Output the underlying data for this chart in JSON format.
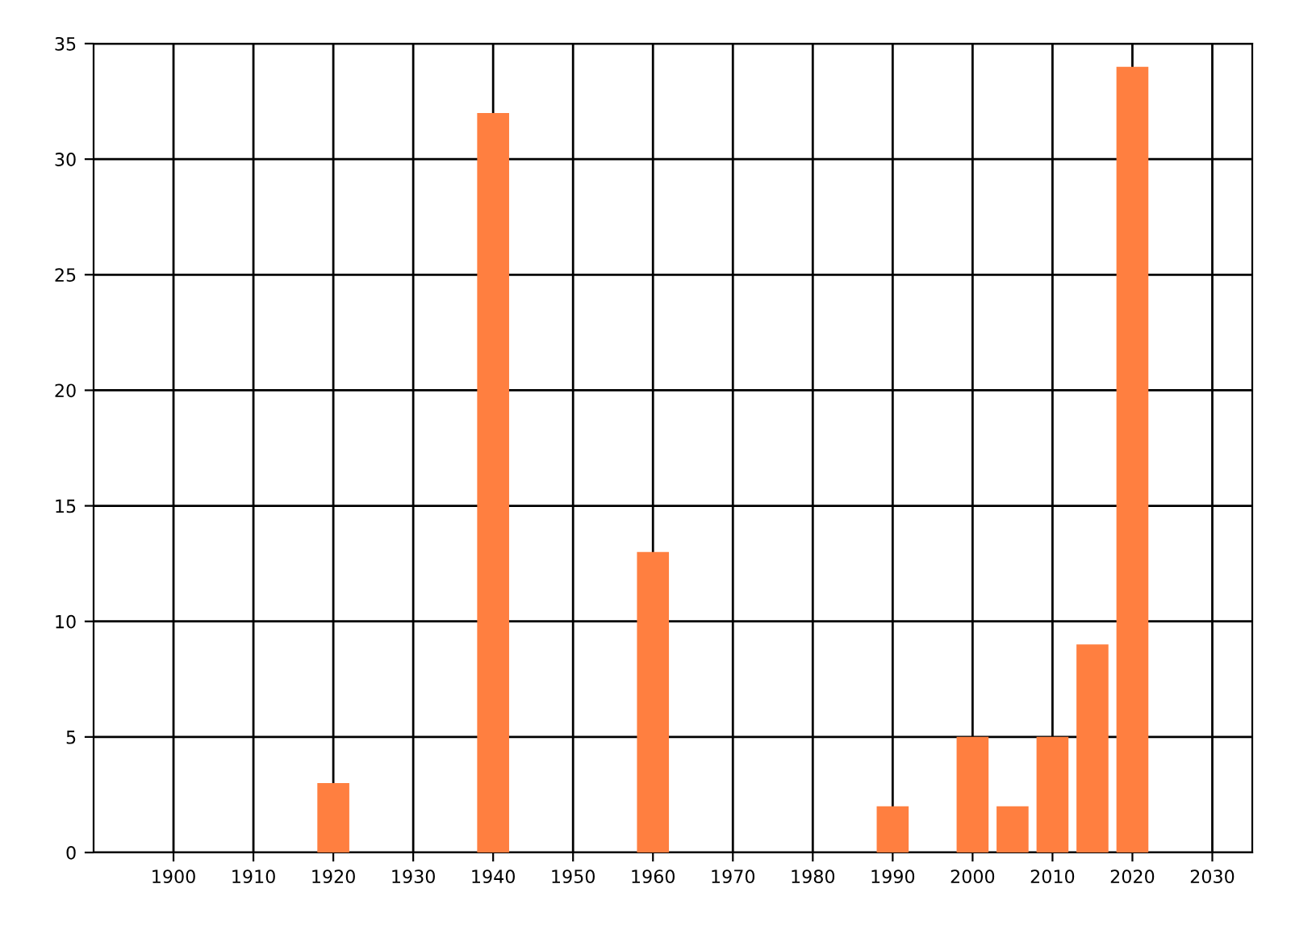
{
  "chart_data": {
    "type": "bar",
    "x": [
      1920,
      1940,
      1960,
      1990,
      2000,
      2005,
      2010,
      2015,
      2020
    ],
    "values": [
      3,
      32,
      13,
      2,
      5,
      2,
      5,
      9,
      34
    ],
    "color": "#ff7f40",
    "xlim": [
      1890,
      2035
    ],
    "xticks": [
      1900,
      1910,
      1920,
      1930,
      1940,
      1950,
      1960,
      1970,
      1980,
      1990,
      2000,
      2010,
      2020,
      2030
    ],
    "ylim": [
      0,
      35
    ],
    "yticks": [
      0,
      5,
      10,
      15,
      20,
      25,
      30,
      35
    ],
    "grid": true,
    "legend": false
  }
}
